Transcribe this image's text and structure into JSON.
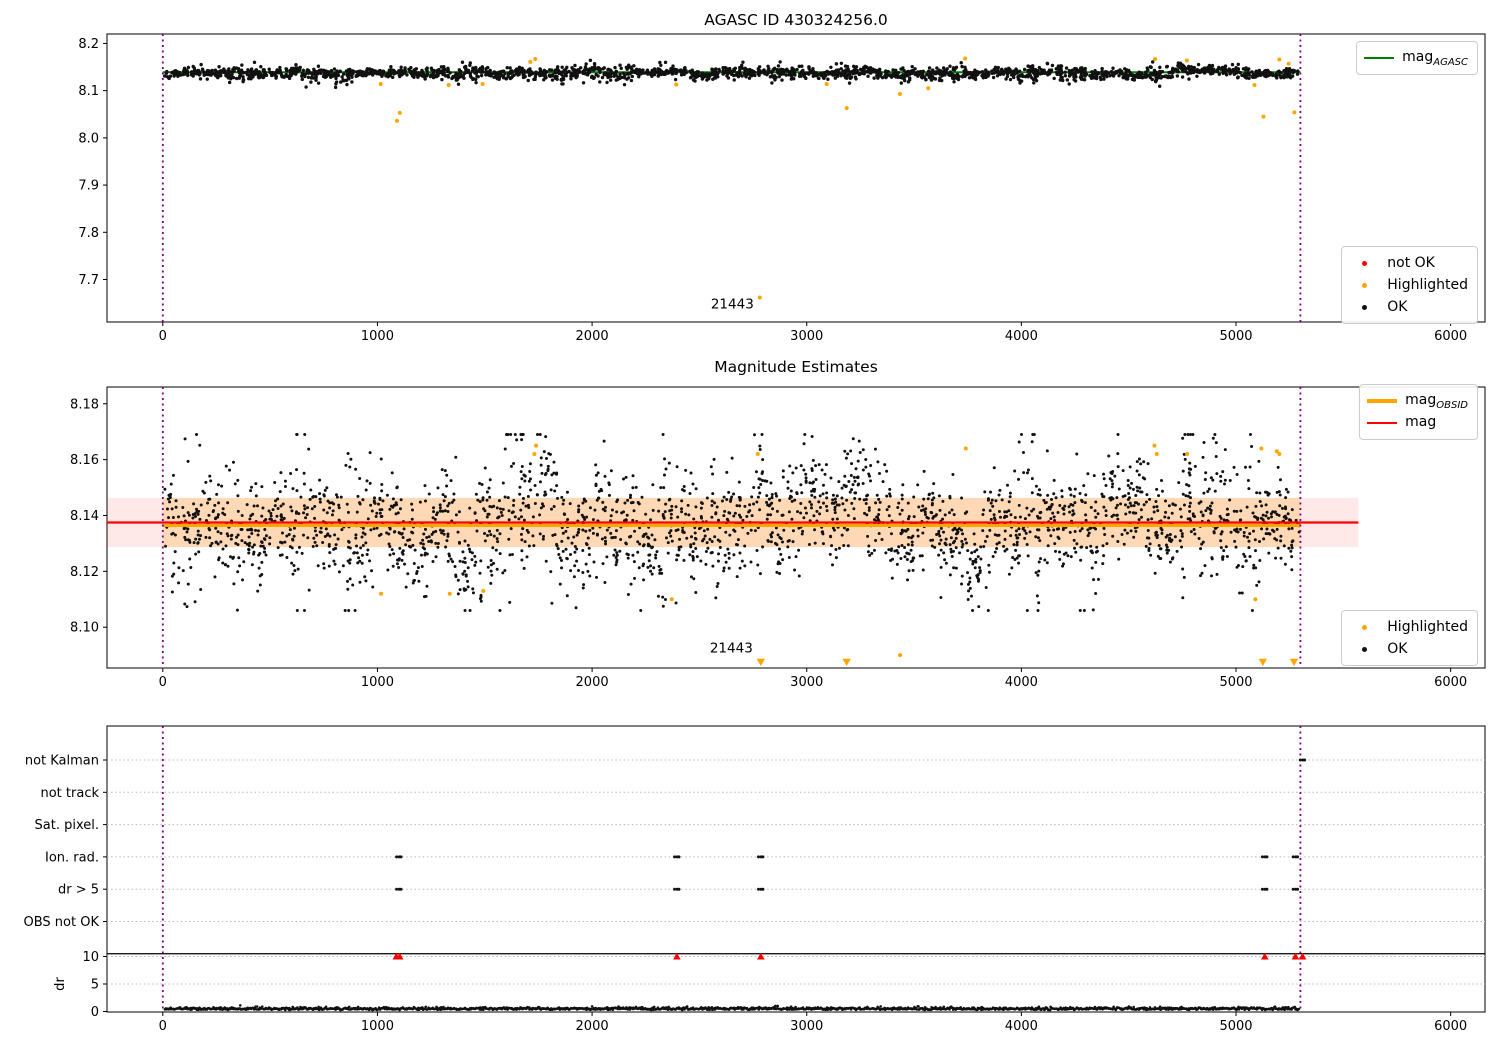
{
  "colors": {
    "ok_marker": "#111111",
    "highlighted_marker": "#ffa500",
    "not_ok_marker": "#ff0000",
    "mag_line": "#ff0000",
    "mag_obsid_line": "#ffa500",
    "mag_agasc_line": "#008000",
    "vline": "#800080",
    "band_pink": "rgba(255,0,0,0.09)",
    "band_orange": "rgba(255,165,0,0.22)",
    "grid": "#b8b8b8",
    "axis": "#000000"
  },
  "chart_data": [
    {
      "type": "scatter",
      "title": "AGASC ID 430324256.0",
      "xlim": [
        -260,
        6160
      ],
      "ylim": [
        7.61,
        8.22
      ],
      "xticks": [
        0,
        1000,
        2000,
        3000,
        4000,
        5000,
        6000
      ],
      "yticks": [
        "8.2",
        "8.1",
        "8.0",
        "7.9",
        "7.8",
        "7.7"
      ],
      "vlines": [
        0,
        5300
      ],
      "agasc_line": {
        "y": 8.139,
        "x0": 0,
        "x1": 5300
      },
      "ok_scatter": {
        "n": 2300,
        "x0": 8,
        "x1": 5295,
        "base": 8.1365,
        "cluster_size": 22,
        "cluster_std": 0.0032,
        "point_std": 0.0048,
        "clip": [
          8.107,
          8.168
        ],
        "wiggle": [
          0.0015,
          150
        ],
        "seed": 20231
      },
      "highlighted_points": [
        [
          1015,
          8.114
        ],
        [
          1091,
          8.036
        ],
        [
          1104,
          8.053
        ],
        [
          1332,
          8.112
        ],
        [
          1490,
          8.114
        ],
        [
          1712,
          8.161
        ],
        [
          1735,
          8.167
        ],
        [
          2392,
          8.113
        ],
        [
          2781,
          7.662
        ],
        [
          3093,
          8.114
        ],
        [
          3186,
          8.063
        ],
        [
          3434,
          8.093
        ],
        [
          3566,
          8.105
        ],
        [
          3738,
          8.168
        ],
        [
          4623,
          8.167
        ],
        [
          4771,
          8.164
        ],
        [
          5086,
          8.112
        ],
        [
          5128,
          8.045
        ],
        [
          5202,
          8.166
        ],
        [
          5245,
          8.157
        ],
        [
          5272,
          8.054
        ]
      ],
      "annotation": {
        "text": "21443",
        "x": 2786,
        "y": 7.662
      },
      "legends": {
        "line": {
          "entries": [
            {
              "base": "mag",
              "sub": "AGASC",
              "color": "#008000"
            }
          ]
        },
        "markers": {
          "entries": [
            {
              "label": "not OK",
              "color": "#ff0000"
            },
            {
              "label": "Highlighted",
              "color": "#ffa500"
            },
            {
              "label": "OK",
              "color": "#111111"
            }
          ]
        }
      }
    },
    {
      "type": "scatter",
      "title": "Magnitude Estimates",
      "xlim": [
        -260,
        6160
      ],
      "ylim": [
        8.0854,
        8.186
      ],
      "xticks": [
        0,
        1000,
        2000,
        3000,
        4000,
        5000,
        6000
      ],
      "yticks": [
        "8.18",
        "8.16",
        "8.14",
        "8.12",
        "8.10"
      ],
      "vlines": [
        0,
        5300
      ],
      "mag": 8.1375,
      "mag_err_band": [
        8.1287,
        8.1463
      ],
      "band_x": [
        -260,
        5570
      ],
      "obsid_band_x": [
        0,
        5300
      ],
      "obsid_line": {
        "y": 8.1368,
        "x0": 0,
        "x1": 5300
      },
      "ok_scatter": {
        "n": 2500,
        "x0": 8,
        "x1": 5295,
        "base": 8.1368,
        "cluster_size": 24,
        "cluster_std": 0.0062,
        "point_std": 0.008,
        "clip": [
          8.106,
          8.169
        ],
        "wiggle": [
          0.001,
          220
        ],
        "seed": 7321
      },
      "highlighted_points": [
        [
          1017,
          8.112
        ],
        [
          1337,
          8.112
        ],
        [
          1493,
          8.113
        ],
        [
          1731,
          8.162
        ],
        [
          1739,
          8.165
        ],
        [
          2371,
          8.11
        ],
        [
          2772,
          8.162
        ],
        [
          3435,
          8.09
        ],
        [
          3741,
          8.164
        ],
        [
          4620,
          8.165
        ],
        [
          4631,
          8.162
        ],
        [
          4772,
          8.162
        ],
        [
          5090,
          8.11
        ],
        [
          5118,
          8.164
        ],
        [
          5190,
          8.163
        ],
        [
          5202,
          8.162
        ]
      ],
      "clipped_low_x": [
        2786,
        3186,
        5125,
        5270
      ],
      "annotation": {
        "text": "21443",
        "x": 2786,
        "y": 8.0895
      },
      "legends": {
        "line": {
          "entries": [
            {
              "base": "mag",
              "sub": "OBSID",
              "color": "#ffa500"
            },
            {
              "base": "mag",
              "sub": "",
              "color": "#ff0000"
            }
          ]
        },
        "markers": {
          "entries": [
            {
              "label": "Highlighted",
              "color": "#ffa500"
            },
            {
              "label": "OK",
              "color": "#111111"
            }
          ]
        }
      }
    },
    {
      "type": "flags",
      "flag_categories": [
        "not Kalman",
        "not track",
        "Sat. pixel.",
        "Ion. rad.",
        "dr > 5",
        "OBS not OK"
      ],
      "dr_ticks": [
        10,
        5,
        0
      ],
      "dr_axis_label": "dr",
      "xlim": [
        -260,
        6160
      ],
      "xticks": [
        0,
        1000,
        2000,
        3000,
        4000,
        5000,
        6000
      ],
      "vlines": [
        0,
        5300
      ],
      "flags": {
        "Ion. rad.": [
          1100,
          2395,
          2786,
          5134,
          5277
        ],
        "dr > 5": [
          1100,
          2395,
          2786,
          5134,
          5277
        ],
        "not Kalman": [
          5310
        ]
      },
      "dr_over_limit_x": [
        1088,
        1104,
        2395,
        2786,
        5134,
        5277,
        5310
      ],
      "dr_scatter": {
        "n": 1500,
        "x0": 8,
        "x1": 5295,
        "base": 0.38,
        "spread": 0.3,
        "clip": [
          0.05,
          2.2
        ],
        "seed": 4242
      }
    }
  ]
}
